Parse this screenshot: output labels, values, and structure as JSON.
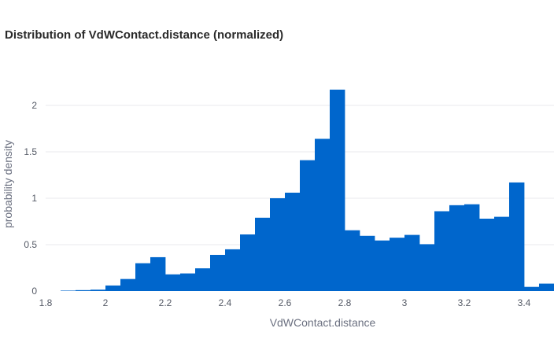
{
  "chart_data": {
    "type": "bar",
    "title": "Distribution of VdWContact.distance (normalized)",
    "xlabel": "VdWContact.distance",
    "ylabel": "probability density",
    "xlim": [
      1.8,
      3.5
    ],
    "ylim": [
      0,
      2.2
    ],
    "xticks": [
      1.8,
      2,
      2.2,
      2.4,
      2.6,
      2.8,
      3,
      3.2,
      3.4
    ],
    "xtick_labels": [
      "1.8",
      "2",
      "2.2",
      "2.4",
      "2.6",
      "2.8",
      "3",
      "3.2",
      "3.4"
    ],
    "yticks": [
      0,
      0.5,
      1,
      1.5,
      2
    ],
    "ytick_labels": [
      "0",
      "0.5",
      "1",
      "1.5",
      "2"
    ],
    "grid": true,
    "bin_edges": [
      1.85,
      1.9,
      1.95,
      2.0,
      2.05,
      2.1,
      2.15,
      2.2,
      2.25,
      2.3,
      2.35,
      2.4,
      2.45,
      2.5,
      2.55,
      2.6,
      2.65,
      2.7,
      2.75,
      2.8,
      2.85,
      2.9,
      2.95,
      3.0,
      3.05,
      3.1,
      3.15,
      3.2,
      3.25,
      3.3,
      3.35,
      3.4,
      3.45,
      3.5
    ],
    "values": [
      0.005,
      0.01,
      0.015,
      0.06,
      0.13,
      0.3,
      0.365,
      0.18,
      0.19,
      0.245,
      0.39,
      0.45,
      0.61,
      0.79,
      1.0,
      1.06,
      1.41,
      1.64,
      2.17,
      0.655,
      0.595,
      0.545,
      0.575,
      0.605,
      0.505,
      0.86,
      0.925,
      0.935,
      0.78,
      0.8,
      1.17,
      0.045,
      0.08
    ],
    "color": "#0066cc"
  }
}
